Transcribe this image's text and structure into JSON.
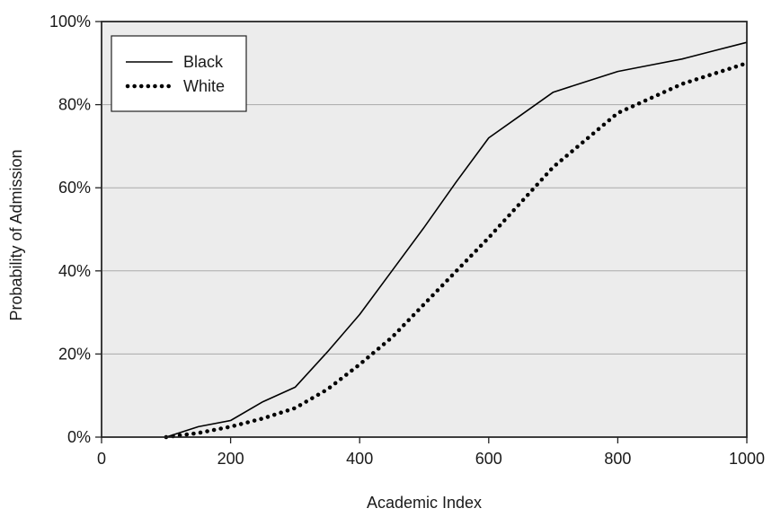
{
  "chart_data": {
    "type": "line",
    "title": "",
    "xlabel": "Academic Index",
    "ylabel": "Probability of Admission",
    "xlim": [
      0,
      1000
    ],
    "ylim": [
      0,
      100
    ],
    "x_ticks": [
      0,
      200,
      400,
      600,
      800,
      1000
    ],
    "x_tick_labels": [
      "0",
      "200",
      "400",
      "600",
      "800",
      "1000"
    ],
    "y_ticks": [
      0,
      20,
      40,
      60,
      80,
      100
    ],
    "y_tick_labels": [
      "0%",
      "20%",
      "40%",
      "60%",
      "80%",
      "100%"
    ],
    "grid": "horizontal",
    "legend_position": "top-left",
    "plot_background": "#ececec",
    "series": [
      {
        "name": "Black",
        "style": "solid",
        "color": "#000000",
        "x": [
          100,
          150,
          200,
          250,
          300,
          350,
          400,
          450,
          500,
          550,
          600,
          650,
          700,
          750,
          800,
          850,
          900,
          950,
          1000
        ],
        "y": [
          0,
          2.5,
          4,
          8.5,
          12,
          20.5,
          29.5,
          40,
          50.5,
          61.5,
          72,
          77.5,
          83,
          85.5,
          88,
          89.5,
          91,
          93,
          95
        ]
      },
      {
        "name": "White",
        "style": "dotted",
        "color": "#000000",
        "x": [
          100,
          150,
          200,
          250,
          300,
          350,
          400,
          450,
          500,
          550,
          600,
          650,
          700,
          750,
          800,
          850,
          900,
          950,
          1000
        ],
        "y": [
          0,
          1,
          2.5,
          4.5,
          7,
          11.5,
          17.5,
          24,
          32,
          40,
          48,
          56.5,
          65,
          71.5,
          78,
          81.5,
          85,
          87.5,
          90
        ]
      }
    ]
  }
}
